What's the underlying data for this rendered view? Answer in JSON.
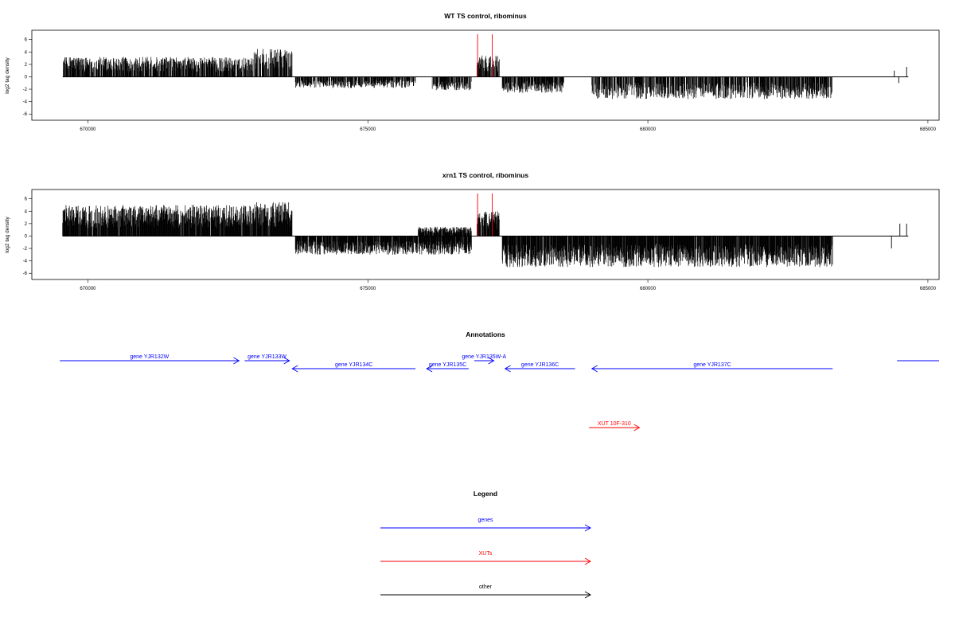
{
  "chart_data": [
    {
      "type": "bar",
      "title": "WT TS control, ribominus",
      "xlabel": "",
      "ylabel": "log2 tag density",
      "xlim": [
        669000,
        685200
      ],
      "ylim": [
        -7,
        7.5
      ],
      "xticks": [
        670000,
        675000,
        680000,
        685000
      ],
      "yticks": [
        -6,
        -4,
        -2,
        0,
        2,
        4,
        6
      ],
      "amplitude": {
        "plus_left": 4.3,
        "plus_mid": 0.6,
        "plus_xut": 3.5,
        "minus": 3.4,
        "minus_mid": 4.0
      },
      "segments": [
        {
          "strand": "+",
          "from": 669550,
          "to": 672950,
          "level": 3.2
        },
        {
          "strand": "+",
          "from": 672950,
          "to": 673650,
          "level": 4.5
        },
        {
          "strand": "-",
          "from": 673700,
          "to": 675850,
          "level": 1.8
        },
        {
          "strand": "-",
          "from": 676150,
          "to": 676850,
          "level": 2.2
        },
        {
          "strand": "+",
          "from": 676950,
          "to": 677350,
          "level": 3.5
        },
        {
          "strand": "-",
          "from": 677400,
          "to": 678500,
          "level": 2.6
        },
        {
          "strand": "-",
          "from": 679000,
          "to": 683300,
          "level": 3.6
        }
      ],
      "red_markers": [
        676960,
        677220
      ],
      "end_bars": [
        [
          684400,
          1.0
        ],
        [
          684620,
          1.6
        ],
        [
          684480,
          -1.0
        ]
      ]
    },
    {
      "type": "bar",
      "title": "xrn1 TS control, ribominus",
      "xlabel": "",
      "ylabel": "log2 tag density",
      "xlim": [
        669000,
        685200
      ],
      "ylim": [
        -7,
        7.5
      ],
      "xticks": [
        670000,
        675000,
        680000,
        685000
      ],
      "yticks": [
        -6,
        -4,
        -2,
        0,
        2,
        4,
        6
      ],
      "amplitude": {
        "plus_left": 5.3,
        "plus_mid": 2.2,
        "plus_xut": 4.0,
        "minus": 4.0,
        "minus_mid": 4.0
      },
      "segments": [
        {
          "strand": "+",
          "from": 669550,
          "to": 672950,
          "level": 5.0
        },
        {
          "strand": "+",
          "from": 672950,
          "to": 673650,
          "level": 5.5
        },
        {
          "strand": "-",
          "from": 673700,
          "to": 676850,
          "level": 3.0
        },
        {
          "strand": "+",
          "from": 675900,
          "to": 676850,
          "level": 1.5
        },
        {
          "strand": "+",
          "from": 676950,
          "to": 677350,
          "level": 4.0
        },
        {
          "strand": "-",
          "from": 677400,
          "to": 683300,
          "level": 5.0
        }
      ],
      "red_markers": [
        676960,
        677220
      ],
      "end_bars": [
        [
          684500,
          2.0
        ],
        [
          684620,
          2.0
        ],
        [
          684350,
          -2.0
        ]
      ]
    }
  ],
  "annotations": {
    "title": "Annotations",
    "genes": [
      {
        "label": "gene YJR132W",
        "from": 669500,
        "to": 672700,
        "row": 1,
        "dir": "right"
      },
      {
        "label": "gene YJR133W",
        "from": 672800,
        "to": 673600,
        "row": 1,
        "dir": "right"
      },
      {
        "label": "gene YJR134C",
        "from": 673650,
        "to": 675850,
        "row": 2,
        "dir": "left"
      },
      {
        "label": "gene YJR135C",
        "from": 676050,
        "to": 676800,
        "row": 2,
        "dir": "left"
      },
      {
        "label": "gene YJR135W-A",
        "from": 676900,
        "to": 677250,
        "row": 1,
        "dir": "right"
      },
      {
        "label": "gene YJR136C",
        "from": 677450,
        "to": 678700,
        "row": 2,
        "dir": "left"
      },
      {
        "label": "gene YJR137C",
        "from": 679000,
        "to": 683300,
        "row": 2,
        "dir": "left"
      },
      {
        "label": "",
        "from": 684450,
        "to": 685200,
        "row": 1,
        "dir": "none"
      }
    ],
    "xuts": [
      {
        "label": "XUT 10F-310",
        "from": 678950,
        "to": 679850,
        "dir": "right"
      }
    ]
  },
  "legend": {
    "title": "Legend",
    "items": [
      {
        "label": "genes",
        "color": "#0000ff"
      },
      {
        "label": "XUTs",
        "color": "#ff0000"
      },
      {
        "label": "other",
        "color": "#000000"
      }
    ]
  }
}
